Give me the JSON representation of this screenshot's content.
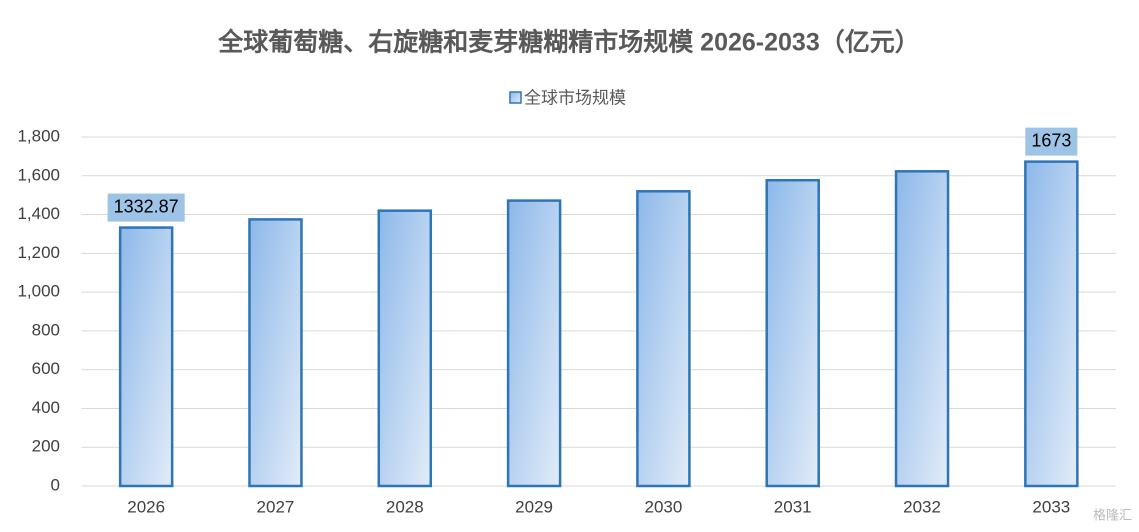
{
  "chart_data": {
    "type": "bar",
    "title": "全球葡萄糖、右旋糖和麦芽糖糊精市场规模 2026-2033（亿元）",
    "categories": [
      "2026",
      "2027",
      "2028",
      "2029",
      "2030",
      "2031",
      "2032",
      "2033"
    ],
    "series": [
      {
        "name": "全球市场规模",
        "color": "#2e75b6",
        "values": [
          1332.87,
          1375,
          1420,
          1472,
          1520,
          1577,
          1623,
          1673
        ],
        "value_labels": [
          "1332.87",
          null,
          null,
          null,
          null,
          null,
          null,
          "1673"
        ]
      }
    ],
    "ylim": [
      0,
      1800
    ],
    "yticks": [
      0,
      200,
      400,
      600,
      800,
      {
        "value": 1000,
        "label": "1,000"
      },
      {
        "value": 1200,
        "label": "1,200"
      },
      {
        "value": 1400,
        "label": "1,400"
      },
      {
        "value": 1600,
        "label": "1,600"
      },
      {
        "value": 1800,
        "label": "1,800"
      }
    ],
    "grid": true,
    "legend": "top",
    "watermark": "格隆汇"
  }
}
